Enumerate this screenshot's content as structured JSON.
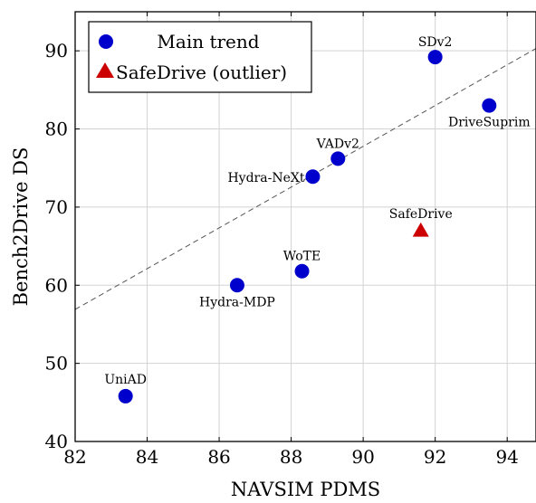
{
  "chart_data": {
    "type": "scatter",
    "xlabel": "NAVSIM PDMS",
    "ylabel": "Bench2Drive DS",
    "xlim": [
      82,
      94.8
    ],
    "ylim": [
      40,
      95
    ],
    "xticks": [
      82,
      84,
      86,
      88,
      90,
      92,
      94
    ],
    "yticks": [
      40,
      50,
      60,
      70,
      80,
      90
    ],
    "xtick_labels": [
      "82",
      "84",
      "86",
      "88",
      "90",
      "92",
      "94"
    ],
    "ytick_labels": [
      "40",
      "50",
      "60",
      "70",
      "80",
      "90"
    ],
    "grid": true,
    "legend_position": "top-left",
    "series": [
      {
        "name": "Main trend",
        "marker": "circle",
        "color": "#0000cc",
        "points": [
          {
            "label": "UniAD",
            "x": 83.4,
            "y": 45.8
          },
          {
            "label": "Hydra-MDP",
            "x": 86.5,
            "y": 60.0
          },
          {
            "label": "WoTE",
            "x": 88.3,
            "y": 61.8
          },
          {
            "label": "Hydra-NeXt",
            "x": 88.6,
            "y": 73.9
          },
          {
            "label": "VADv2",
            "x": 89.3,
            "y": 76.2
          },
          {
            "label": "SDv2",
            "x": 92.0,
            "y": 89.2
          },
          {
            "label": "DriveSuprim",
            "x": 93.5,
            "y": 83.0
          }
        ]
      },
      {
        "name": "SafeDrive (outlier)",
        "marker": "triangle",
        "color": "#cc0000",
        "points": [
          {
            "label": "SafeDrive",
            "x": 91.6,
            "y": 67.0
          }
        ]
      }
    ],
    "trend_line": {
      "style": "dashed",
      "color": "#555555",
      "x": [
        82,
        94.8
      ],
      "y": [
        56.9,
        90.3
      ]
    }
  }
}
